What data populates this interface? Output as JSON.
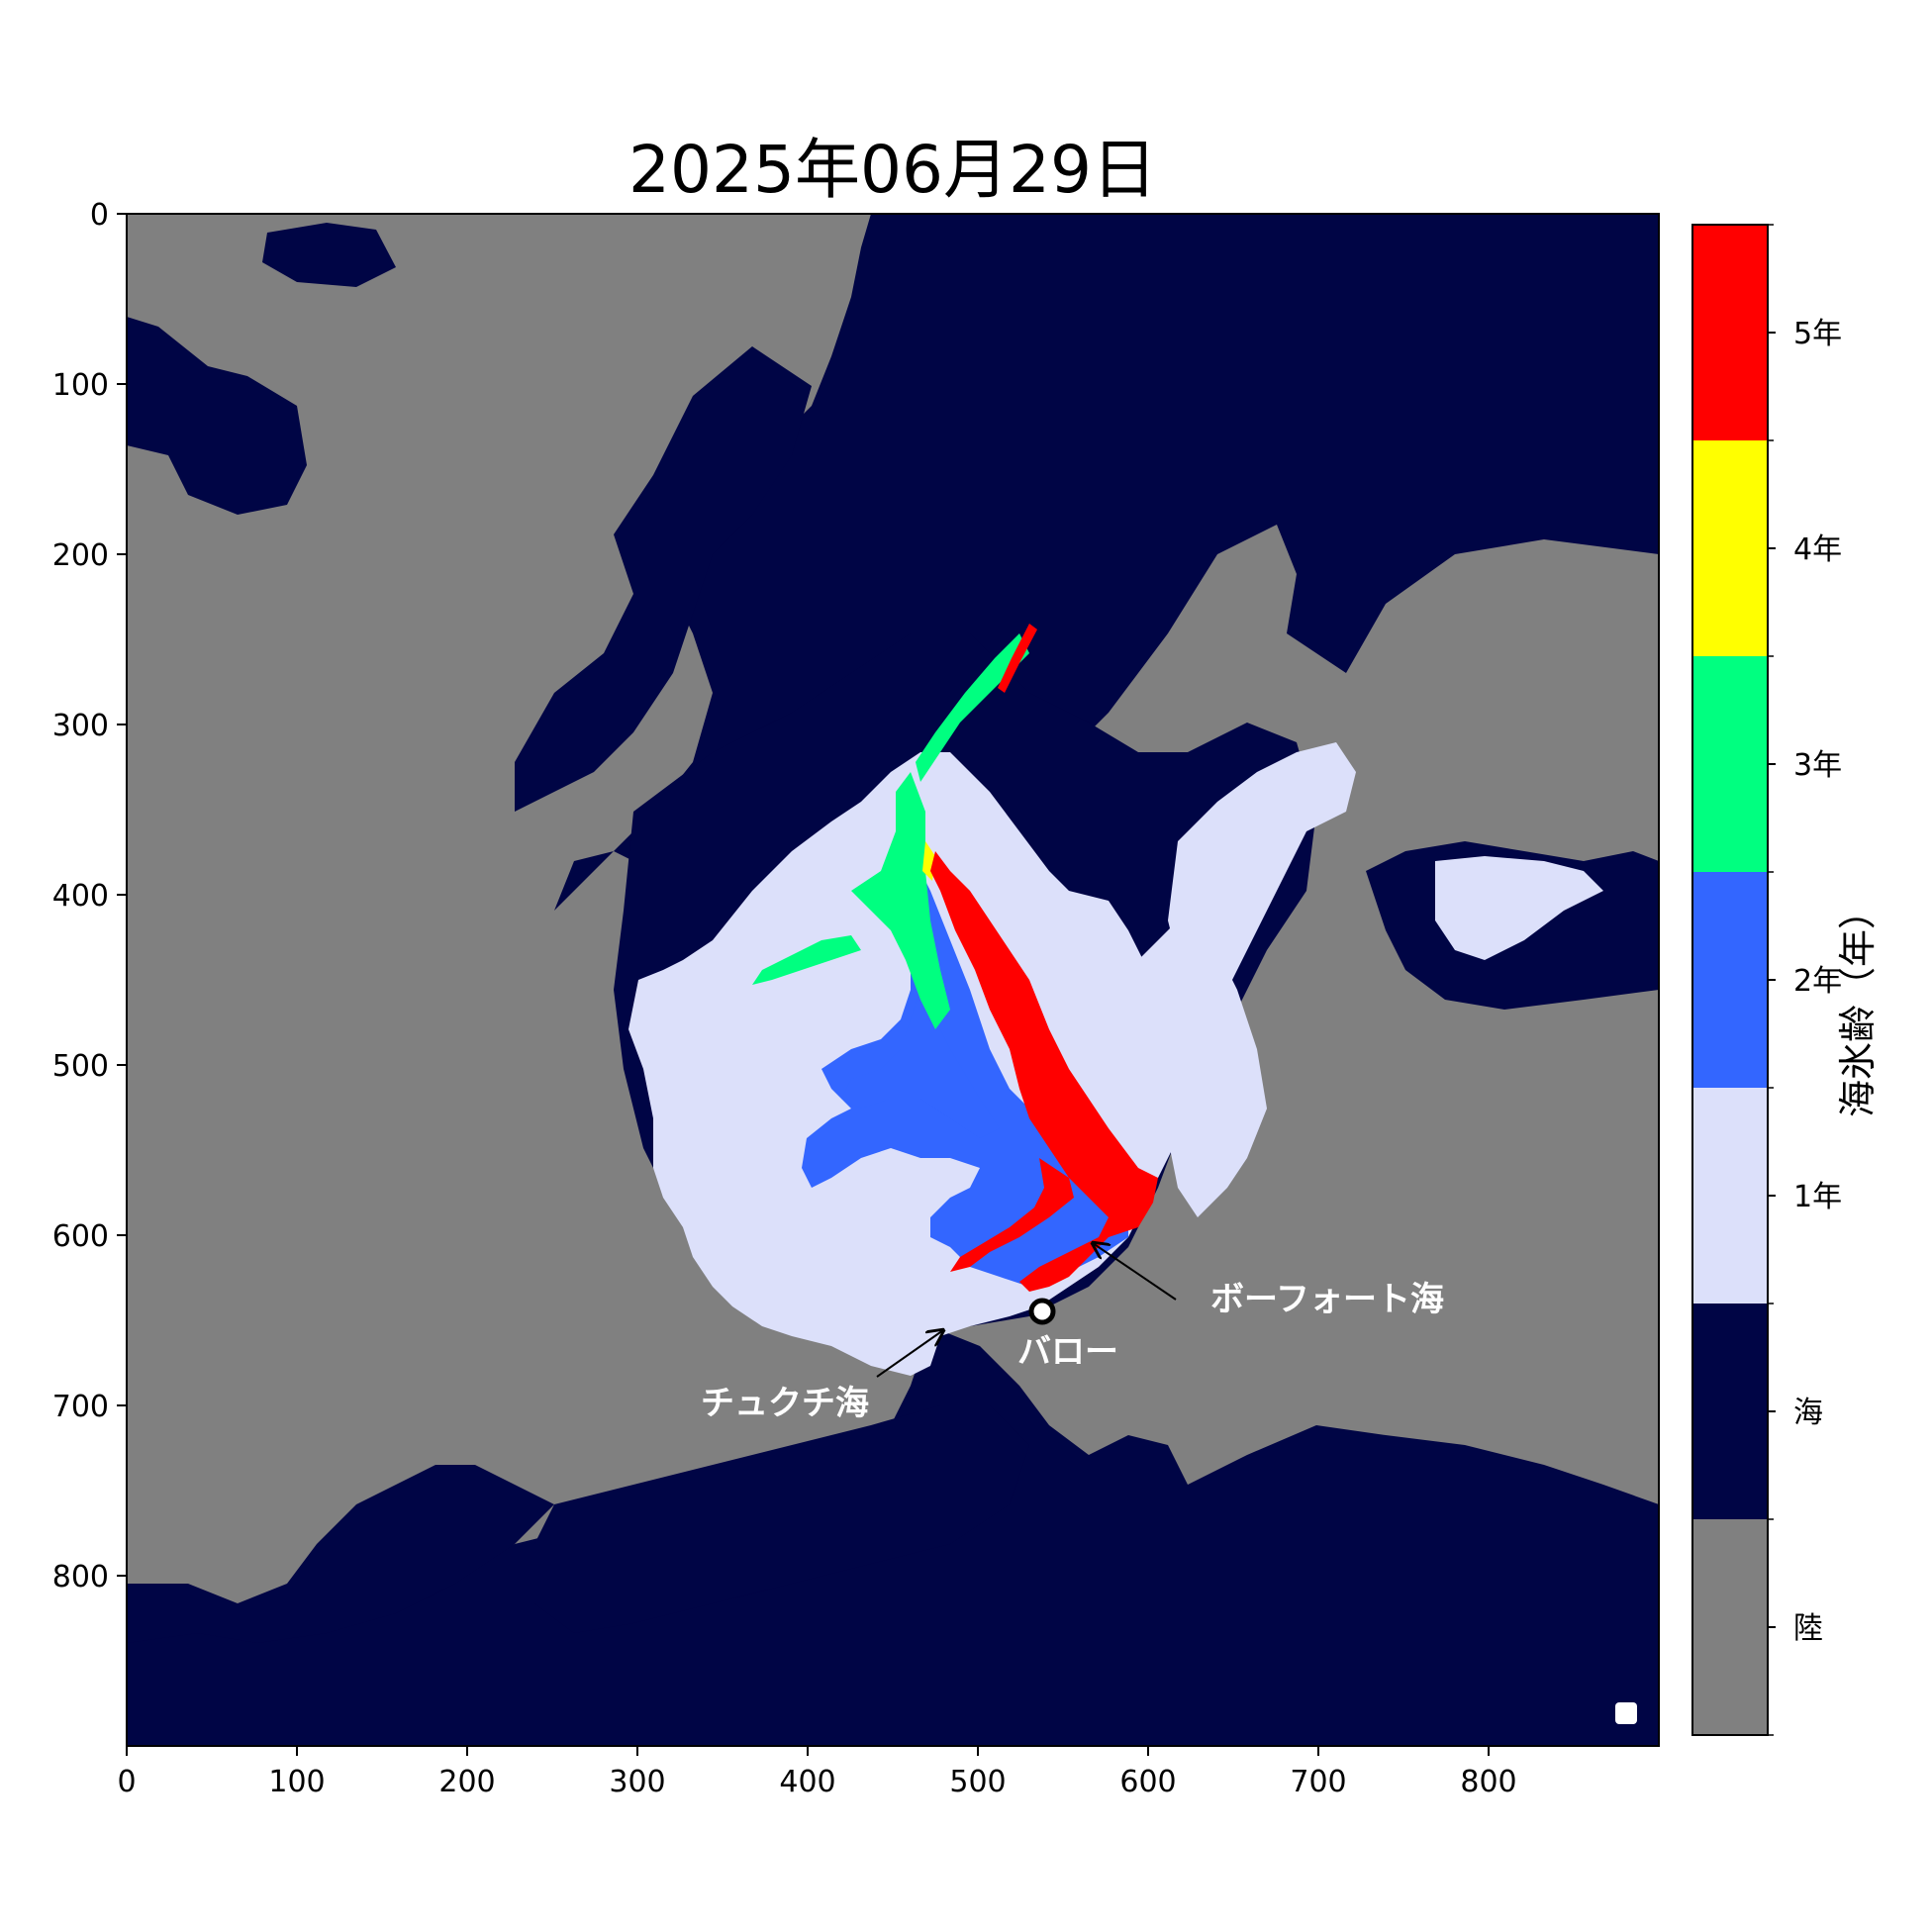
{
  "chart_data": {
    "type": "heatmap",
    "title": "2025年06月29日",
    "xlabel": "",
    "ylabel": "",
    "xlim": [
      0,
      900
    ],
    "ylim": [
      900,
      0
    ],
    "x_ticks": [
      0,
      100,
      200,
      300,
      400,
      500,
      600,
      700,
      800
    ],
    "y_ticks": [
      0,
      100,
      200,
      300,
      400,
      500,
      600,
      700,
      800
    ],
    "colorbar": {
      "label": "海氷齢（年）",
      "categories": [
        {
          "label": "陸",
          "color": "#808080"
        },
        {
          "label": "海",
          "color": "#000545"
        },
        {
          "label": "1年",
          "color": "#dce0fa"
        },
        {
          "label": "2年",
          "color": "#3366ff"
        },
        {
          "label": "3年",
          "color": "#00ff80"
        },
        {
          "label": "4年",
          "color": "#ffff00"
        },
        {
          "label": "5年",
          "color": "#ff0000"
        }
      ]
    },
    "annotations": [
      {
        "text": "ボーフォート海",
        "x": 638,
        "y": 640,
        "arrow_to": [
          567,
          610
        ]
      },
      {
        "text": "バロー",
        "x": 525,
        "y": 675,
        "marker": [
          537,
          644
        ]
      },
      {
        "text": "チュクチ海",
        "x": 337,
        "y": 698,
        "arrow_to": [
          478,
          656
        ]
      }
    ]
  }
}
